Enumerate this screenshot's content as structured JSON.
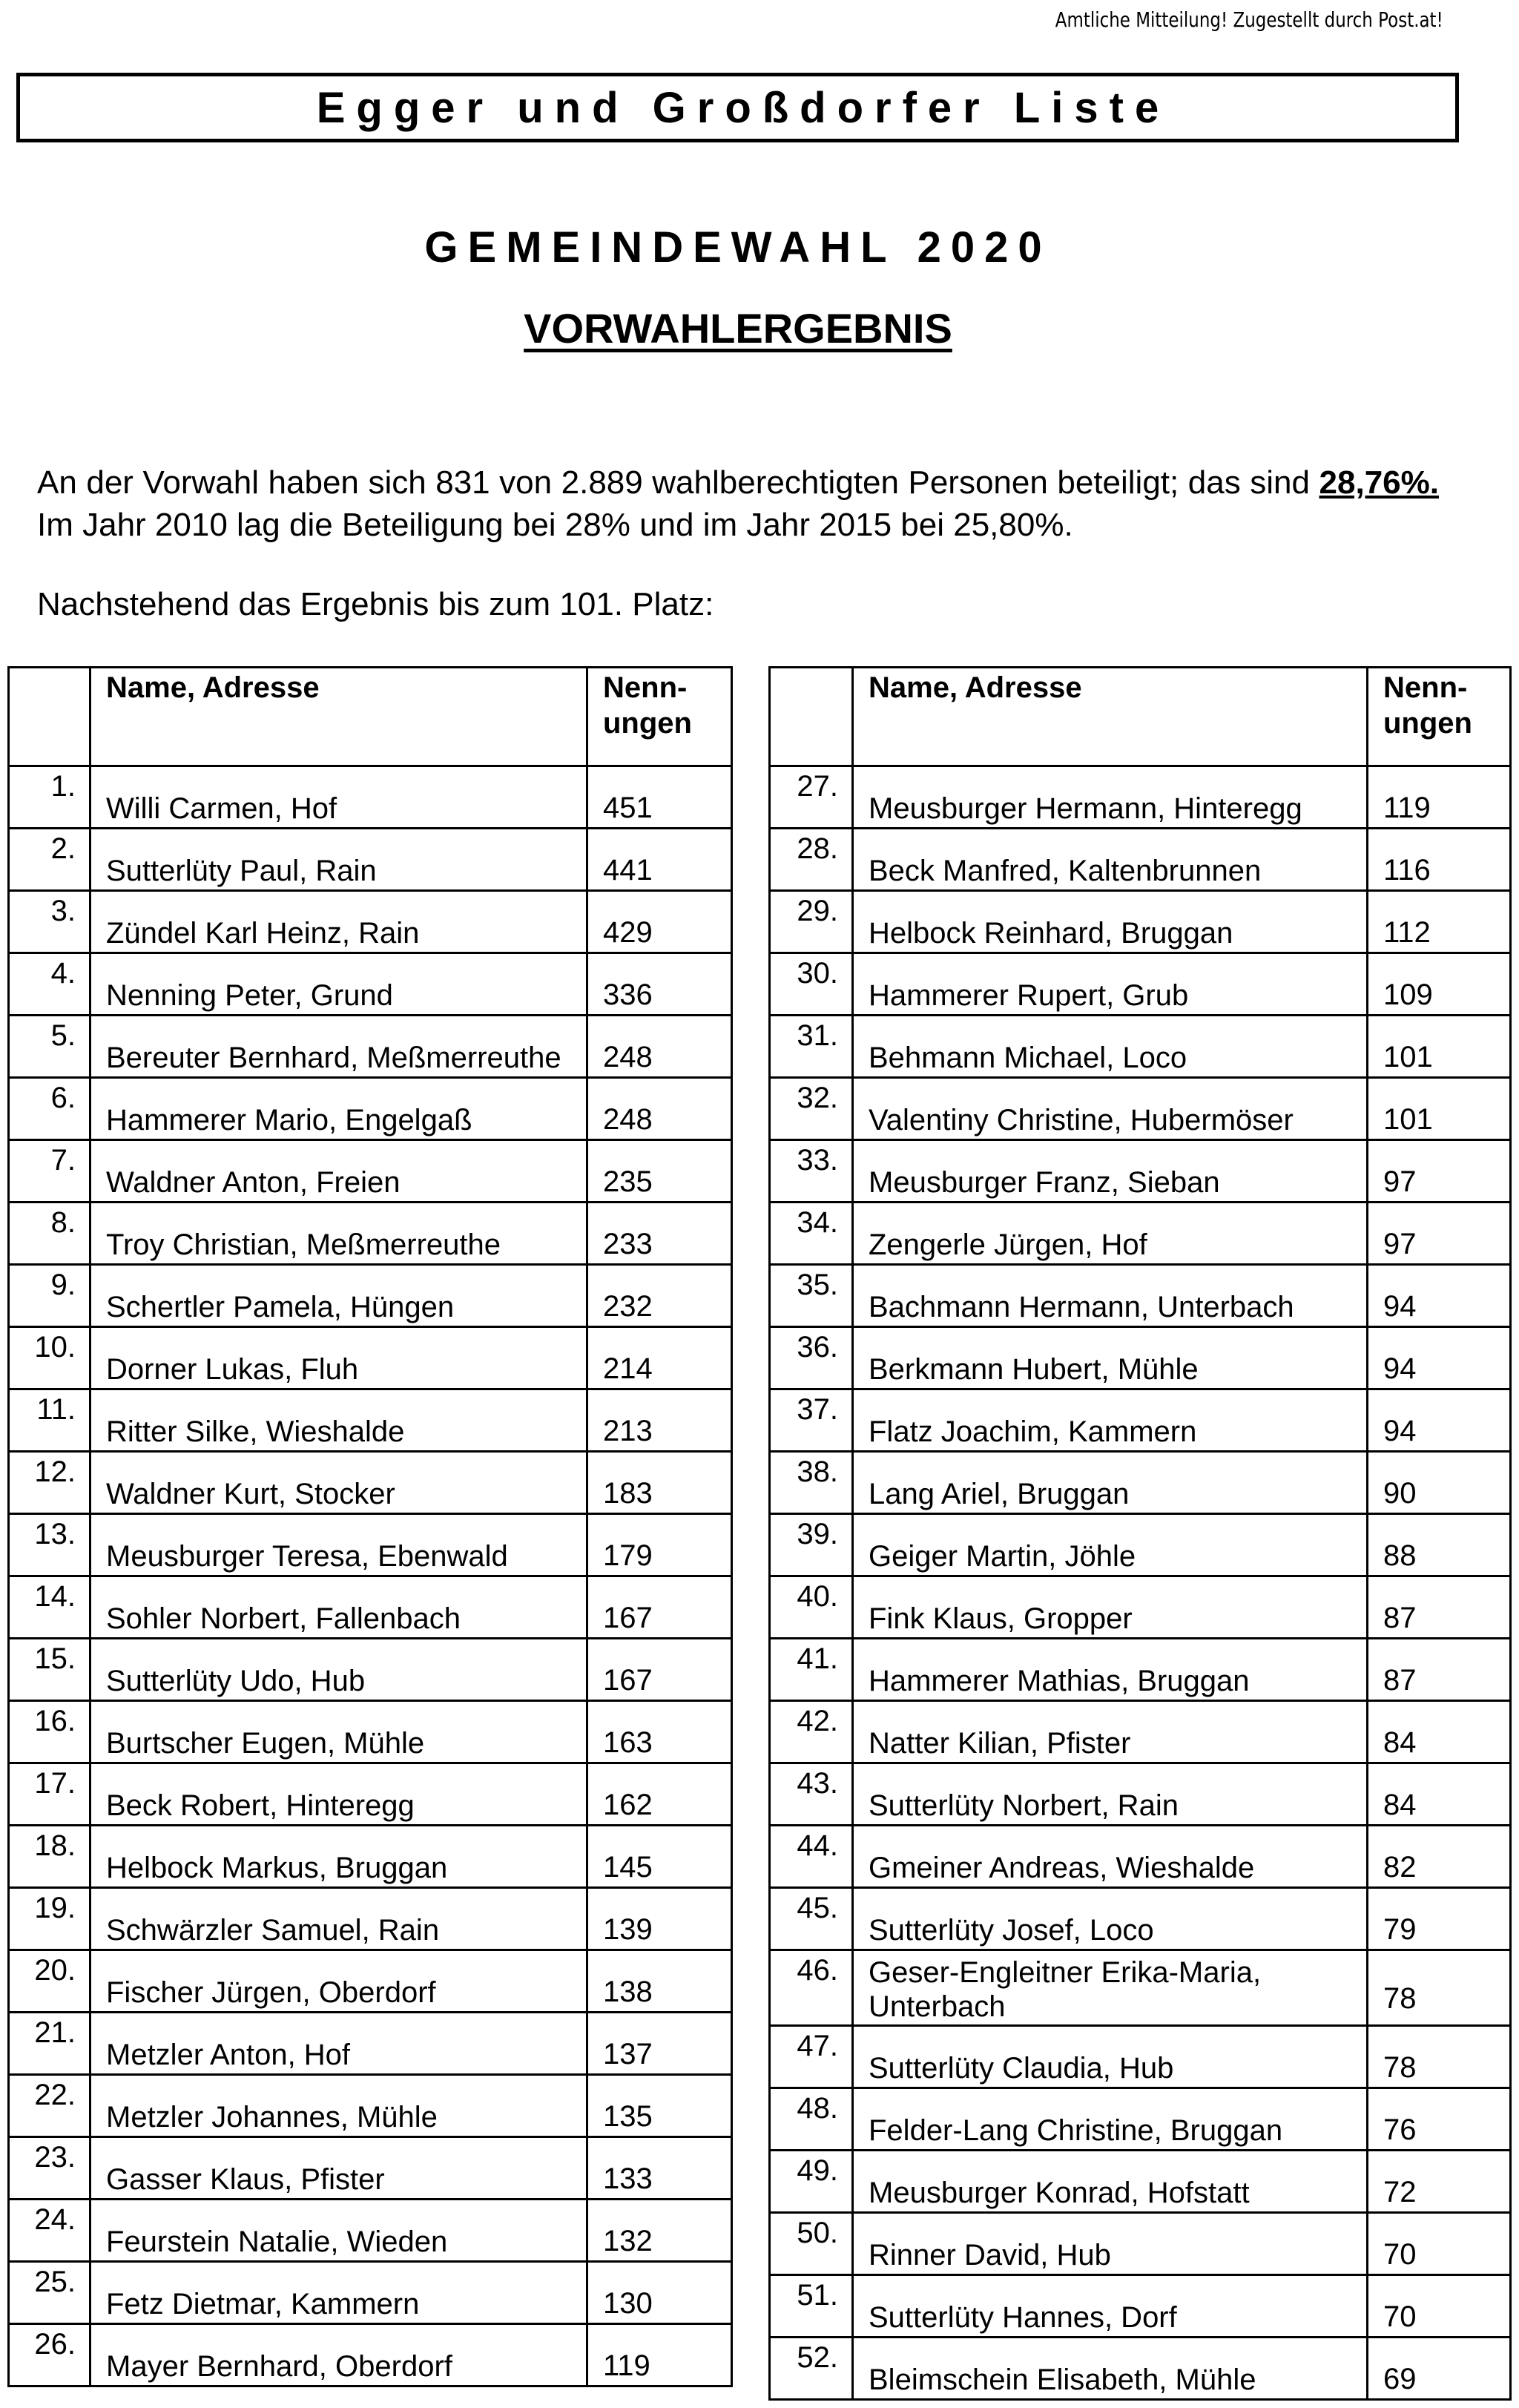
{
  "notice": "Amtliche Mitteilung! Zugestellt durch Post.at!",
  "list_title": "Egger und Großdorfer Liste",
  "heading": "GEMEINDEWAHL 2020",
  "subheading": "VORWAHLERGEBNIS",
  "intro": {
    "text1": "An der Vorwahl haben sich 831 von 2.889 wahlberechtigten Personen beteiligt; das sind ",
    "percent": "28,76%.",
    "text2": " Im Jahr 2010 lag die Beteiligung bei 28% und im Jahr 2015 bei 25,80%."
  },
  "result_intro": "Nachstehend das Ergebnis bis zum 101. Platz:",
  "table_headers": {
    "rank": "",
    "name": "Name, Adresse",
    "count": "Nenn-\nungen"
  },
  "left_table": [
    {
      "rank": "1.",
      "name": "Willi Carmen, Hof",
      "count": "451"
    },
    {
      "rank": "2.",
      "name": "Sutterlüty Paul, Rain",
      "count": "441"
    },
    {
      "rank": "3.",
      "name": "Zündel Karl Heinz, Rain",
      "count": "429"
    },
    {
      "rank": "4.",
      "name": "Nenning Peter, Grund",
      "count": "336"
    },
    {
      "rank": "5.",
      "name": "Bereuter Bernhard, Meßmerreuthe",
      "count": "248"
    },
    {
      "rank": "6.",
      "name": "Hammerer Mario, Engelgaß",
      "count": "248"
    },
    {
      "rank": "7.",
      "name": "Waldner Anton, Freien",
      "count": "235"
    },
    {
      "rank": "8.",
      "name": "Troy Christian, Meßmerreuthe",
      "count": "233"
    },
    {
      "rank": "9.",
      "name": "Schertler Pamela, Hüngen",
      "count": "232"
    },
    {
      "rank": "10.",
      "name": "Dorner Lukas, Fluh",
      "count": "214"
    },
    {
      "rank": "11.",
      "name": "Ritter Silke, Wieshalde",
      "count": "213"
    },
    {
      "rank": "12.",
      "name": "Waldner Kurt, Stocker",
      "count": "183"
    },
    {
      "rank": "13.",
      "name": "Meusburger Teresa, Ebenwald",
      "count": "179"
    },
    {
      "rank": "14.",
      "name": "Sohler Norbert, Fallenbach",
      "count": "167"
    },
    {
      "rank": "15.",
      "name": "Sutterlüty Udo, Hub",
      "count": "167"
    },
    {
      "rank": "16.",
      "name": "Burtscher Eugen, Mühle",
      "count": "163"
    },
    {
      "rank": "17.",
      "name": "Beck Robert, Hinteregg",
      "count": "162"
    },
    {
      "rank": "18.",
      "name": "Helbock Markus, Bruggan",
      "count": "145"
    },
    {
      "rank": "19.",
      "name": "Schwärzler Samuel, Rain",
      "count": "139"
    },
    {
      "rank": "20.",
      "name": "Fischer Jürgen, Oberdorf",
      "count": "138"
    },
    {
      "rank": "21.",
      "name": "Metzler Anton, Hof",
      "count": "137"
    },
    {
      "rank": "22.",
      "name": "Metzler Johannes, Mühle",
      "count": "135"
    },
    {
      "rank": "23.",
      "name": "Gasser Klaus, Pfister",
      "count": "133"
    },
    {
      "rank": "24.",
      "name": "Feurstein Natalie, Wieden",
      "count": "132"
    },
    {
      "rank": "25.",
      "name": "Fetz Dietmar, Kammern",
      "count": "130"
    },
    {
      "rank": "26.",
      "name": "Mayer Bernhard, Oberdorf",
      "count": "119"
    }
  ],
  "right_table": [
    {
      "rank": "27.",
      "name": "Meusburger Hermann, Hinteregg",
      "count": "119"
    },
    {
      "rank": "28.",
      "name": "Beck Manfred, Kaltenbrunnen",
      "count": "116"
    },
    {
      "rank": "29.",
      "name": "Helbock Reinhard, Bruggan",
      "count": "112"
    },
    {
      "rank": "30.",
      "name": "Hammerer Rupert, Grub",
      "count": "109"
    },
    {
      "rank": "31.",
      "name": "Behmann Michael, Loco",
      "count": "101"
    },
    {
      "rank": "32.",
      "name": "Valentiny Christine, Hubermöser",
      "count": "101"
    },
    {
      "rank": "33.",
      "name": "Meusburger Franz, Sieban",
      "count": "97"
    },
    {
      "rank": "34.",
      "name": "Zengerle Jürgen, Hof",
      "count": "97"
    },
    {
      "rank": "35.",
      "name": "Bachmann Hermann, Unterbach",
      "count": "94"
    },
    {
      "rank": "36.",
      "name": "Berkmann Hubert, Mühle",
      "count": "94"
    },
    {
      "rank": "37.",
      "name": "Flatz Joachim, Kammern",
      "count": "94"
    },
    {
      "rank": "38.",
      "name": "Lang Ariel, Bruggan",
      "count": "90"
    },
    {
      "rank": "39.",
      "name": "Geiger Martin, Jöhle",
      "count": "88"
    },
    {
      "rank": "40.",
      "name": "Fink Klaus, Gropper",
      "count": "87"
    },
    {
      "rank": "41.",
      "name": "Hammerer Mathias, Bruggan",
      "count": "87"
    },
    {
      "rank": "42.",
      "name": "Natter Kilian, Pfister",
      "count": "84"
    },
    {
      "rank": "43.",
      "name": "Sutterlüty Norbert, Rain",
      "count": "84"
    },
    {
      "rank": "44.",
      "name": "Gmeiner Andreas, Wieshalde",
      "count": "82"
    },
    {
      "rank": "45.",
      "name": "Sutterlüty Josef, Loco",
      "count": "79"
    },
    {
      "rank": "46.",
      "name": "Geser-Engleitner Erika-Maria, Unterbach",
      "count": "78"
    },
    {
      "rank": "47.",
      "name": "Sutterlüty Claudia, Hub",
      "count": "78"
    },
    {
      "rank": "48.",
      "name": "Felder-Lang Christine, Bruggan",
      "count": "76"
    },
    {
      "rank": "49.",
      "name": "Meusburger Konrad, Hofstatt",
      "count": "72"
    },
    {
      "rank": "50.",
      "name": "Rinner David, Hub",
      "count": "70"
    },
    {
      "rank": "51.",
      "name": "Sutterlüty Hannes, Dorf",
      "count": "70"
    },
    {
      "rank": "52.",
      "name": "Bleimschein Elisabeth, Mühle",
      "count": "69"
    }
  ]
}
